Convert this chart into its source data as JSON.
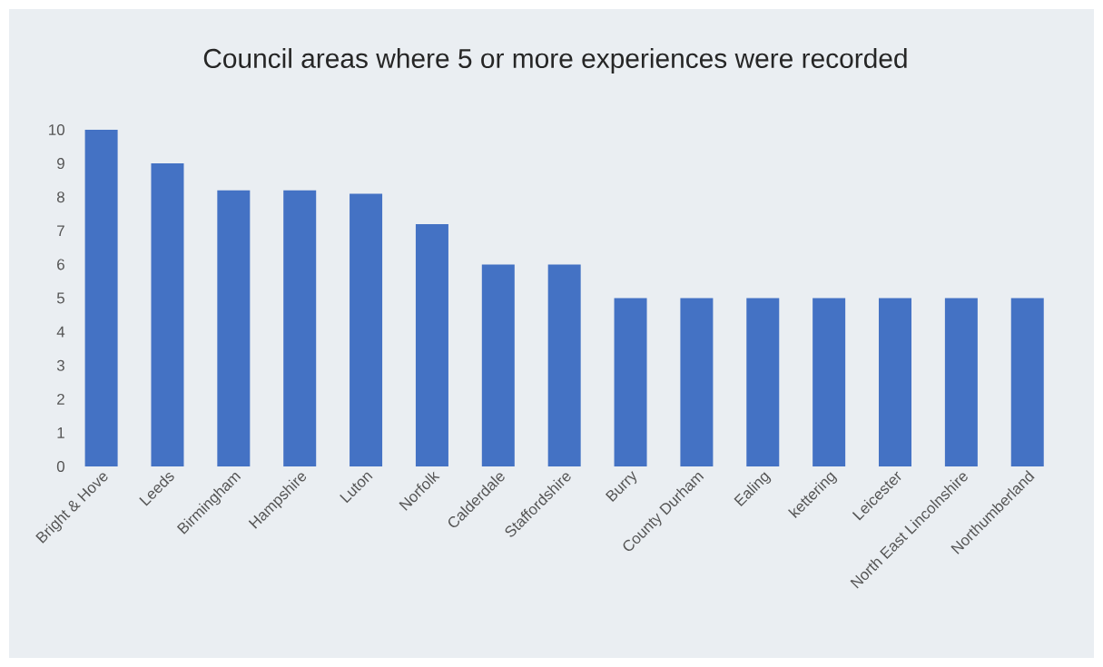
{
  "chart_data": {
    "type": "bar",
    "title": "Council areas where 5 or more experiences were recorded",
    "categories": [
      "Bright & Hove",
      "Leeds",
      "Birmingham",
      "Hampshire",
      "Luton",
      "Norfolk",
      "Calderdale",
      "Staffordshire",
      "Burry",
      "County Durham",
      "Ealing",
      "kettering",
      "Leicester",
      "North East Lincolnshire",
      "Northumberland"
    ],
    "values": [
      10,
      9,
      8.2,
      8.2,
      8.1,
      7.2,
      6,
      6,
      5,
      5,
      5,
      5,
      5,
      5,
      5
    ],
    "color": "#4472c4",
    "ylim": [
      0,
      10
    ],
    "yticks": [
      0,
      1,
      2,
      3,
      4,
      5,
      6,
      7,
      8,
      9,
      10
    ]
  }
}
